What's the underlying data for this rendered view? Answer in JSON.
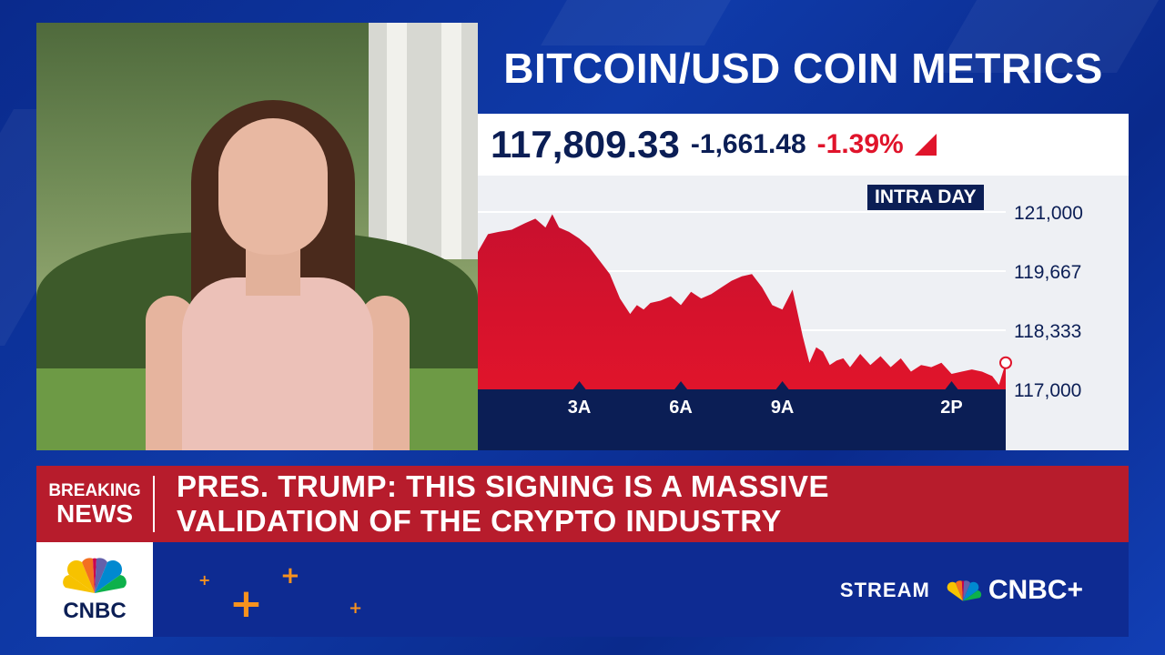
{
  "chart_title": "BITCOIN/USD COIN METRICS",
  "quote": {
    "price": "117,809.33",
    "change": "-1,661.48",
    "percent": "-1.39%"
  },
  "colors": {
    "background": "#0f3aa8",
    "navy": "#0b1e55",
    "negative_red": "#e0142b",
    "breaking_red": "#b71c2c",
    "accent_orange": "#f7921e"
  },
  "chart_data": {
    "type": "area",
    "timeframe_label": "INTRA DAY",
    "x_tick_labels": [
      "3A",
      "6A",
      "9A",
      "2P"
    ],
    "y_tick_labels": [
      "121,000",
      "119,667",
      "118,333",
      "117,000"
    ],
    "ylim": [
      117000,
      121000
    ],
    "x_range_hours": [
      0,
      15.6
    ],
    "series": [
      {
        "x": [
          0,
          0.3,
          0.6,
          1.0,
          1.4,
          1.7,
          2.0,
          2.2,
          2.4,
          2.7,
          3.0,
          3.3,
          3.6,
          3.9,
          4.2,
          4.5,
          4.7,
          4.9,
          5.1,
          5.4,
          5.7,
          6.0,
          6.3,
          6.6,
          6.9,
          7.2,
          7.5,
          7.8,
          8.1,
          8.4,
          8.7,
          9.0,
          9.3,
          9.6,
          9.8,
          10.0,
          10.2,
          10.4,
          10.6,
          10.8,
          11.0,
          11.3,
          11.6,
          11.9,
          12.2,
          12.5,
          12.8,
          13.1,
          13.4,
          13.7,
          14.0,
          14.3,
          14.6,
          14.9,
          15.2,
          15.4,
          15.6
        ],
        "y": [
          120100,
          120500,
          120550,
          120600,
          120750,
          120850,
          120650,
          120950,
          120650,
          120550,
          120400,
          120200,
          119900,
          119600,
          119050,
          118700,
          118900,
          118800,
          118950,
          119000,
          119100,
          118900,
          119200,
          119050,
          119150,
          119300,
          119450,
          119550,
          119600,
          119300,
          118900,
          118800,
          119250,
          118200,
          117600,
          117950,
          117850,
          117550,
          117650,
          117700,
          117500,
          117800,
          117550,
          117750,
          117500,
          117700,
          117400,
          117550,
          117500,
          117600,
          117350,
          117400,
          117450,
          117400,
          117300,
          117100,
          117600
        ]
      }
    ]
  },
  "breaking_news": {
    "label_line1": "BREAKING",
    "label_line2": "NEWS",
    "headline_line1": "PRES. TRUMP: THIS SIGNING IS A MASSIVE",
    "headline_line2": "VALIDATION OF THE CRYPTO INDUSTRY"
  },
  "network": {
    "logo_text": "CNBC",
    "stream_label": "STREAM",
    "stream_brand": "CNBC+"
  }
}
